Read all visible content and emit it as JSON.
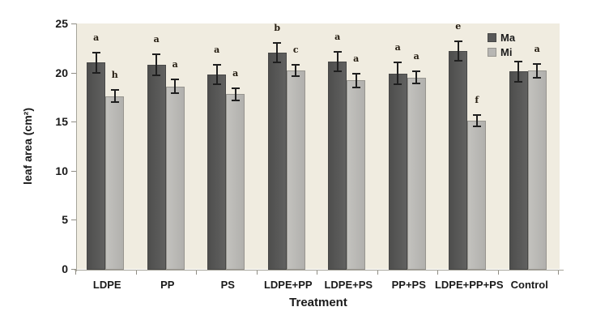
{
  "figure": {
    "background": "#ffffff"
  },
  "chart_data": {
    "type": "bar",
    "title": "",
    "xlabel": "Treatment",
    "ylabel": "leaf area (cm²)",
    "ylim": [
      0,
      25
    ],
    "yticks": [
      0,
      5,
      10,
      15,
      20,
      25
    ],
    "grid": false,
    "plot_background": "#f0ece0",
    "axis_color": "#a6a49a",
    "text_color": "#1a1a1a",
    "sig_letter_color": "#241c10",
    "legend_position": "top-right-inside",
    "categories": [
      "LDPE",
      "PP",
      "PS",
      "LDPE+PP",
      "LDPE+PS",
      "PP+PS",
      "LDPE+PP+PS",
      "Control"
    ],
    "series": [
      {
        "name": "Ma",
        "color": "#595959",
        "values": [
          21.0,
          20.8,
          19.8,
          22.0,
          21.1,
          19.9,
          22.2,
          20.1
        ],
        "errors": [
          1.0,
          1.1,
          1.0,
          1.0,
          1.0,
          1.1,
          1.0,
          1.0
        ],
        "letters": [
          "a",
          "a",
          "a",
          "b",
          "a",
          "a",
          "e",
          ""
        ]
      },
      {
        "name": "Mi",
        "color": "#b7b6b3",
        "values": [
          17.6,
          18.6,
          17.8,
          20.2,
          19.2,
          19.5,
          15.1,
          20.2
        ],
        "errors": [
          0.6,
          0.7,
          0.6,
          0.6,
          0.7,
          0.6,
          0.6,
          0.7
        ],
        "letters": [
          "h",
          "a",
          "a",
          "c",
          "a",
          "a",
          "f",
          "a"
        ]
      }
    ]
  }
}
